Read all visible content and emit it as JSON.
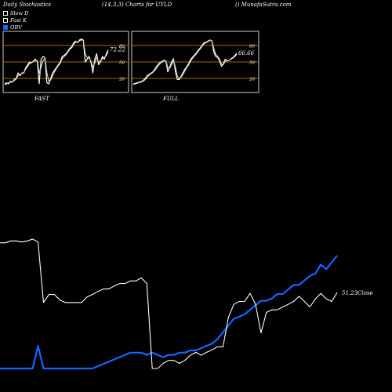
{
  "header": {
    "left": "Daily Stochastics",
    "center": "(14,3,3) Charts for UYLD",
    "right": "() MunafaSutra.com"
  },
  "legend": [
    {
      "label": "Slow D",
      "color": "#ffffff"
    },
    {
      "label": "Fast K",
      "color": "#ffffff"
    },
    {
      "label": "OBV",
      "color": "#1565ff"
    }
  ],
  "chart_data": [
    {
      "type": "line",
      "title": "FAST",
      "value_label": "72.22",
      "ylim": [
        0,
        100
      ],
      "yticks": [
        "80",
        "50",
        "20"
      ],
      "guide_color": "#d18a1e",
      "series": [
        {
          "color": "#ffffff",
          "values": [
            10,
            12,
            10,
            15,
            13,
            18,
            20,
            30,
            25,
            30,
            30,
            40,
            45,
            50,
            48,
            52,
            55,
            50,
            10,
            55,
            60,
            58,
            12,
            10,
            20,
            30,
            35,
            40,
            45,
            50,
            60,
            62,
            65,
            70,
            75,
            78,
            85,
            88,
            85,
            90,
            92,
            90,
            50,
            55,
            60,
            50,
            30,
            55,
            65,
            45,
            50,
            60,
            55,
            65,
            72
          ]
        },
        {
          "color": "#cccccc",
          "values": [
            8,
            10,
            12,
            13,
            14,
            16,
            19,
            25,
            27,
            29,
            31,
            37,
            42,
            47,
            49,
            51,
            53,
            52,
            30,
            40,
            52,
            57,
            30,
            15,
            17,
            25,
            32,
            38,
            43,
            48,
            56,
            60,
            63,
            68,
            73,
            76,
            82,
            86,
            86,
            88,
            90,
            90,
            65,
            58,
            57,
            52,
            40,
            48,
            58,
            50,
            52,
            56,
            58,
            62,
            68
          ]
        }
      ]
    },
    {
      "type": "line",
      "title": "FULL",
      "value_label": "66.66",
      "ylim": [
        0,
        100
      ],
      "yticks": [
        "80",
        "50",
        "20"
      ],
      "guide_color": "#d18a1e",
      "series": [
        {
          "color": "#ffffff",
          "values": [
            10,
            11,
            12,
            13,
            14,
            16,
            19,
            24,
            27,
            29,
            31,
            36,
            41,
            46,
            49,
            51,
            53,
            52,
            32,
            40,
            50,
            56,
            32,
            18,
            18,
            24,
            31,
            37,
            42,
            48,
            55,
            59,
            63,
            67,
            72,
            76,
            81,
            85,
            86,
            88,
            90,
            89,
            68,
            60,
            58,
            52,
            42,
            47,
            55,
            52,
            53,
            56,
            58,
            62,
            66
          ]
        },
        {
          "color": "#cccccc",
          "values": [
            9,
            10,
            11,
            12,
            13,
            15,
            17,
            21,
            25,
            28,
            30,
            34,
            38,
            43,
            47,
            50,
            52,
            52,
            40,
            38,
            45,
            53,
            40,
            24,
            20,
            22,
            28,
            34,
            40,
            45,
            52,
            57,
            61,
            65,
            70,
            74,
            79,
            83,
            85,
            87,
            89,
            89,
            75,
            64,
            60,
            55,
            46,
            45,
            51,
            52,
            53,
            55,
            57,
            60,
            64
          ]
        }
      ]
    },
    {
      "type": "line",
      "title": "",
      "value_label": "51.23Close",
      "series": [
        {
          "name": "Close",
          "color": "#ffffff",
          "values": [
            64.8,
            64.8,
            65.3,
            65.3,
            65.0,
            65.3,
            65.8,
            65.0,
            48.5,
            50.7,
            50.7,
            49.2,
            48.5,
            48.5,
            48.5,
            48.5,
            50.0,
            50.7,
            51.5,
            52.2,
            52.2,
            53.0,
            53.7,
            53.7,
            54.4,
            54.4,
            55.2,
            53.7,
            30.5,
            30.5,
            31.9,
            32.7,
            32.7,
            31.9,
            32.7,
            34.1,
            34.9,
            34.1,
            34.9,
            35.6,
            36.4,
            36.4,
            44.4,
            48.0,
            48.8,
            48.8,
            51.0,
            48.0,
            40.2,
            45.8,
            46.5,
            46.5,
            47.3,
            48.0,
            48.8,
            50.2,
            48.8,
            47.3,
            49.5,
            51.0,
            49.5,
            48.8,
            51.2
          ]
        },
        {
          "name": "OBV",
          "color": "#1565ff",
          "values": [
            2,
            2,
            2,
            2,
            2,
            2,
            2,
            12,
            2,
            2,
            2,
            2,
            2,
            2,
            2,
            2,
            2,
            2,
            3,
            4,
            5,
            6,
            7,
            8,
            9,
            9,
            9,
            8,
            9,
            8,
            7,
            8,
            8,
            9,
            9,
            10,
            10,
            11,
            12,
            13,
            15,
            18,
            21,
            24,
            25,
            26,
            28,
            30,
            32,
            32,
            33,
            35,
            35,
            37,
            39,
            39,
            41,
            43,
            44,
            48,
            46,
            49,
            52
          ]
        }
      ]
    }
  ]
}
